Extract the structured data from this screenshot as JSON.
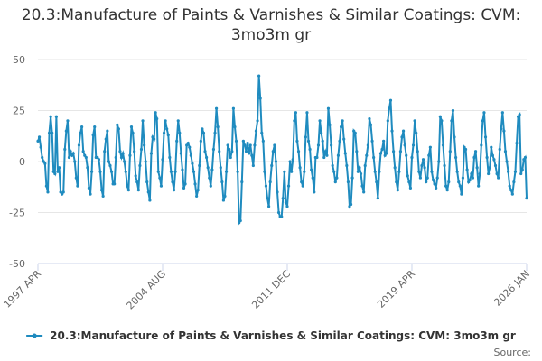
{
  "chart_data": {
    "type": "line",
    "title": "20.3:Manufacture of Paints & Varnishes & Similar Coatings: CVM: 3mo3m gr",
    "source": "Source:",
    "ylim": [
      -50,
      50
    ],
    "yticks": [
      -50,
      -25,
      0,
      25,
      50
    ],
    "grid": true,
    "xticks": [
      "1997 APR",
      "2004 AUG",
      "2011 DEC",
      "2019 APR",
      "2026 JAN"
    ],
    "x": [
      "1997 APR",
      "1997 MAY",
      "1997 JUN",
      "1997 JUL",
      "1997 AUG",
      "1997 SEP",
      "1997 OCT",
      "1997 NOV",
      "1997 DEC",
      "1998 JAN",
      "1998 FEB",
      "1998 MAR",
      "1998 APR",
      "1998 MAY",
      "1998 JUN",
      "1998 JUL",
      "1998 AUG",
      "1998 SEP",
      "1998 OCT",
      "1998 NOV",
      "1998 DEC",
      "1999 JAN",
      "1999 FEB",
      "1999 MAR",
      "1999 APR",
      "1999 MAY",
      "1999 JUN",
      "1999 JUL",
      "1999 AUG",
      "1999 SEP",
      "1999 OCT",
      "1999 NOV",
      "1999 DEC",
      "2000 JAN",
      "2000 FEB",
      "2000 MAR",
      "2000 APR",
      "2000 MAY",
      "2000 JUN",
      "2000 JUL",
      "2000 AUG",
      "2000 SEP",
      "2000 OCT",
      "2000 NOV",
      "2000 DEC",
      "2001 JAN",
      "2001 FEB",
      "2001 MAR",
      "2001 APR",
      "2001 MAY",
      "2001 JUN",
      "2001 JUL",
      "2001 AUG",
      "2001 SEP",
      "2001 OCT",
      "2001 NOV",
      "2001 DEC",
      "2002 JAN",
      "2002 FEB",
      "2002 MAR",
      "2002 APR",
      "2002 MAY",
      "2002 JUN",
      "2002 JUL",
      "2002 AUG",
      "2002 SEP",
      "2002 OCT",
      "2002 NOV",
      "2002 DEC",
      "2003 JAN",
      "2003 FEB",
      "2003 MAR",
      "2003 APR",
      "2003 MAY",
      "2003 JUN",
      "2003 JUL",
      "2003 AUG",
      "2003 SEP",
      "2003 OCT",
      "2003 NOV",
      "2003 DEC",
      "2004 JAN",
      "2004 FEB",
      "2004 MAR",
      "2004 APR",
      "2004 MAY",
      "2004 JUN",
      "2004 JUL",
      "2004 AUG",
      "2004 SEP",
      "2004 OCT",
      "2004 NOV",
      "2004 DEC",
      "2005 JAN",
      "2005 FEB",
      "2005 MAR",
      "2005 APR",
      "2005 MAY",
      "2005 JUN",
      "2005 JUL",
      "2005 AUG",
      "2005 SEP",
      "2005 OCT",
      "2005 NOV",
      "2005 DEC",
      "2006 JAN",
      "2006 FEB",
      "2006 MAR",
      "2006 APR",
      "2006 MAY",
      "2006 JUN",
      "2006 JUL",
      "2006 AUG",
      "2006 SEP",
      "2006 OCT",
      "2006 NOV",
      "2006 DEC",
      "2007 JAN",
      "2007 FEB",
      "2007 MAR",
      "2007 APR",
      "2007 MAY",
      "2007 JUN",
      "2007 JUL",
      "2007 AUG",
      "2007 SEP",
      "2007 OCT",
      "2007 NOV",
      "2007 DEC",
      "2008 JAN",
      "2008 FEB",
      "2008 MAR",
      "2008 APR",
      "2008 MAY",
      "2008 JUN",
      "2008 JUL",
      "2008 AUG",
      "2008 SEP",
      "2008 OCT",
      "2008 NOV",
      "2008 DEC",
      "2009 JAN",
      "2009 FEB",
      "2009 MAR",
      "2009 APR",
      "2009 MAY",
      "2009 JUN",
      "2009 JUL",
      "2009 AUG",
      "2009 SEP",
      "2009 OCT",
      "2009 NOV",
      "2009 DEC",
      "2010 JAN",
      "2010 FEB",
      "2010 MAR",
      "2010 APR",
      "2010 MAY",
      "2010 JUN",
      "2010 JUL",
      "2010 AUG",
      "2010 SEP",
      "2010 OCT",
      "2010 NOV",
      "2010 DEC",
      "2011 JAN",
      "2011 FEB",
      "2011 MAR",
      "2011 APR",
      "2011 MAY",
      "2011 JUN",
      "2011 JUL",
      "2011 AUG",
      "2011 SEP",
      "2011 OCT",
      "2011 NOV",
      "2011 DEC",
      "2012 JAN",
      "2012 FEB",
      "2012 MAR",
      "2012 APR",
      "2012 MAY",
      "2012 JUN",
      "2012 JUL",
      "2012 AUG",
      "2012 SEP",
      "2012 OCT",
      "2012 NOV",
      "2012 DEC",
      "2013 JAN",
      "2013 FEB",
      "2013 MAR",
      "2013 APR",
      "2013 MAY",
      "2013 JUN",
      "2013 JUL",
      "2013 AUG",
      "2013 SEP",
      "2013 OCT",
      "2013 NOV",
      "2013 DEC",
      "2014 JAN",
      "2014 FEB",
      "2014 MAR",
      "2014 APR",
      "2014 MAY",
      "2014 JUN",
      "2014 JUL",
      "2014 AUG",
      "2014 SEP",
      "2014 OCT",
      "2014 NOV",
      "2014 DEC",
      "2015 JAN",
      "2015 FEB",
      "2015 MAR",
      "2015 APR",
      "2015 MAY",
      "2015 JUN",
      "2015 JUL",
      "2015 AUG",
      "2015 SEP",
      "2015 OCT",
      "2015 NOV",
      "2015 DEC",
      "2016 JAN",
      "2016 FEB",
      "2016 MAR",
      "2016 APR",
      "2016 MAY",
      "2016 JUN",
      "2016 JUL",
      "2016 AUG",
      "2016 SEP",
      "2016 OCT",
      "2016 NOV",
      "2016 DEC",
      "2017 JAN",
      "2017 FEB",
      "2017 MAR",
      "2017 APR",
      "2017 MAY",
      "2017 JUN",
      "2017 JUL",
      "2017 AUG",
      "2017 SEP",
      "2017 OCT",
      "2017 NOV",
      "2017 DEC",
      "2018 JAN",
      "2018 FEB",
      "2018 MAR",
      "2018 APR",
      "2018 MAY",
      "2018 JUN",
      "2018 JUL",
      "2018 AUG",
      "2018 SEP",
      "2018 OCT",
      "2018 NOV",
      "2018 DEC",
      "2019 JAN",
      "2019 FEB",
      "2019 MAR",
      "2019 APR",
      "2019 MAY",
      "2019 JUN",
      "2019 JUL",
      "2019 AUG",
      "2019 SEP",
      "2019 OCT",
      "2019 NOV",
      "2019 DEC",
      "2020 JAN",
      "2020 FEB",
      "2020 MAR",
      "2020 APR",
      "2020 MAY",
      "2020 JUN",
      "2020 JUL",
      "2020 AUG",
      "2020 SEP",
      "2020 OCT",
      "2020 NOV",
      "2020 DEC",
      "2021 JAN",
      "2021 FEB",
      "2021 MAR",
      "2021 APR",
      "2021 MAY",
      "2021 JUN",
      "2021 JUL",
      "2021 AUG",
      "2021 SEP",
      "2021 OCT",
      "2021 NOV",
      "2021 DEC",
      "2022 JAN",
      "2022 FEB",
      "2022 MAR",
      "2022 APR",
      "2022 MAY",
      "2022 JUN",
      "2022 JUL",
      "2022 AUG",
      "2022 SEP",
      "2022 OCT",
      "2022 NOV",
      "2022 DEC",
      "2023 JAN",
      "2023 FEB",
      "2023 MAR",
      "2023 APR",
      "2023 MAY",
      "2023 JUN",
      "2023 JUL",
      "2023 AUG",
      "2023 SEP",
      "2023 OCT",
      "2023 NOV",
      "2023 DEC",
      "2024 JAN",
      "2024 FEB",
      "2024 MAR",
      "2024 APR",
      "2024 MAY",
      "2024 JUN",
      "2024 JUL",
      "2024 AUG",
      "2024 SEP",
      "2024 OCT",
      "2024 NOV",
      "2024 DEC",
      "2025 JAN",
      "2025 FEB",
      "2025 MAR",
      "2025 APR",
      "2025 MAY",
      "2025 JUN",
      "2025 JUL",
      "2025 AUG",
      "2025 SEP",
      "2025 OCT",
      "2025 NOV",
      "2025 DEC",
      "2026 JAN"
    ],
    "series": [
      {
        "name": "20.3:Manufacture of Paints & Varnishes & Similar Coatings: CVM: 3mo3m gr",
        "color": "#1f8bbf",
        "values": [
          10,
          12,
          7,
          2,
          0,
          -1,
          -12,
          -15,
          14,
          22,
          14,
          -5,
          -6,
          22,
          -5,
          -3,
          -15,
          -16,
          -15,
          6,
          15,
          20,
          2,
          5,
          3,
          4,
          0,
          -8,
          -12,
          8,
          14,
          17,
          5,
          3,
          2,
          -3,
          -13,
          -16,
          -5,
          13,
          17,
          2,
          2,
          1,
          -5,
          -14,
          -17,
          5,
          11,
          15,
          0,
          -2,
          -5,
          -11,
          -11,
          2,
          18,
          16,
          5,
          2,
          4,
          0,
          -5,
          -12,
          -14,
          3,
          17,
          14,
          5,
          -7,
          -10,
          -14,
          -2,
          6,
          20,
          8,
          0,
          -10,
          -15,
          -19,
          4,
          12,
          11,
          24,
          21,
          -5,
          -8,
          -12,
          1,
          14,
          20,
          16,
          13,
          2,
          -5,
          -10,
          -14,
          -5,
          10,
          20,
          14,
          4,
          -4,
          -13,
          -11,
          8,
          9,
          7,
          3,
          -1,
          -5,
          -11,
          -17,
          -14,
          -2,
          10,
          16,
          14,
          5,
          2,
          -3,
          -8,
          -12,
          -4,
          6,
          14,
          26,
          17,
          5,
          -3,
          -10,
          -19,
          -17,
          -5,
          8,
          6,
          2,
          5,
          26,
          17,
          10,
          -5,
          -30,
          -29,
          -10,
          10,
          8,
          5,
          9,
          4,
          8,
          3,
          -2,
          8,
          15,
          20,
          42,
          31,
          14,
          10,
          -5,
          -12,
          -18,
          -22,
          -10,
          -2,
          5,
          8,
          0,
          -15,
          -25,
          -27,
          -27,
          -18,
          -5,
          -20,
          -22,
          -12,
          0,
          -5,
          1,
          20,
          24,
          10,
          5,
          -3,
          -10,
          -12,
          -5,
          12,
          24,
          10,
          6,
          -4,
          -8,
          -15,
          2,
          2,
          8,
          20,
          14,
          10,
          2,
          5,
          3,
          26,
          18,
          8,
          -2,
          -5,
          -10,
          -8,
          3,
          10,
          17,
          20,
          11,
          4,
          -2,
          -10,
          -22,
          -21,
          -8,
          15,
          14,
          5,
          -5,
          -3,
          -6,
          -12,
          -15,
          -2,
          3,
          8,
          21,
          18,
          10,
          2,
          -5,
          -10,
          -18,
          -5,
          4,
          6,
          10,
          3,
          4,
          20,
          26,
          30,
          15,
          5,
          -3,
          -10,
          -14,
          -5,
          5,
          12,
          15,
          8,
          3,
          -7,
          -10,
          -13,
          2,
          8,
          20,
          14,
          5,
          -5,
          -8,
          -2,
          1,
          -3,
          -10,
          -8,
          3,
          7,
          -5,
          -9,
          -11,
          -13,
          -8,
          0,
          22,
          20,
          8,
          -2,
          -12,
          -14,
          -10,
          5,
          20,
          25,
          12,
          2,
          -5,
          -10,
          -12,
          -16,
          -8,
          7,
          6,
          -4,
          -10,
          -9,
          -6,
          -8,
          2,
          5,
          -3,
          -12,
          -6,
          8,
          20,
          24,
          12,
          2,
          -6,
          -3,
          7,
          3,
          1,
          -2,
          -6,
          -8,
          6,
          16,
          24,
          15,
          5,
          0,
          -5,
          -12,
          -14,
          -16,
          -10,
          -5,
          9,
          22,
          23,
          -6,
          -4,
          1,
          2,
          -18
        ]
      }
    ]
  }
}
